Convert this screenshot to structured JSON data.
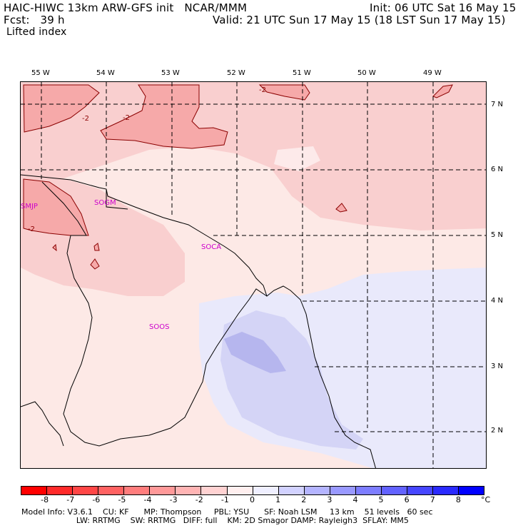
{
  "header": {
    "title_left": "HAIC-HIWC 13km ARW-GFS init   NCAR/MMM",
    "fcst_left": "Fcst:   39 h",
    "field_name": "Lifted index",
    "init_right": "Init: 06 UTC Sat 16 May 15",
    "valid_right": "Valid: 21 UTC Sun 17 May 15 (18 LST Sun 17 May 15)"
  },
  "map": {
    "lon_labels": [
      "55 W",
      "54 W",
      "53 W",
      "52 W",
      "51 W",
      "50 W",
      "49 W"
    ],
    "lat_labels": [
      "7 N",
      "6 N",
      "5 N",
      "4 N",
      "3 N",
      "2 N"
    ],
    "contour_labels": [
      "-2",
      "-2",
      "-2",
      "-2"
    ],
    "sites": [
      "SMJP",
      "SOGM",
      "SOCA",
      "SOOS"
    ]
  },
  "colorbar": {
    "ticks": [
      "-8",
      "-7",
      "-6",
      "-5",
      "-4",
      "-3",
      "-2",
      "-1",
      "0",
      "1",
      "2",
      "3",
      "4",
      "5",
      "6",
      "7",
      "8"
    ],
    "unit": "°C",
    "colors": [
      "#ff0000",
      "#ff2a2a",
      "#ff4646",
      "#ff6262",
      "#ff7d7d",
      "#ff9999",
      "#ffb4b4",
      "#ffd2d2",
      "#ffefef",
      "#efefff",
      "#d2d2ff",
      "#b4b4ff",
      "#9999ff",
      "#7d7dff",
      "#6262ff",
      "#4646ff",
      "#2a2aff",
      "#0000ff"
    ]
  },
  "footer": {
    "line1": "Model Info: V3.6.1    CU: KF      MP: Thompson     PBL: YSU      SF: Noah LSM     13 km    51 levels   60 sec",
    "line2": "                      LW: RRTMG    SW: RRTMG   DIFF: full    KM: 2D Smagor DAMP: Rayleigh3  SFLAY: MM5"
  }
}
